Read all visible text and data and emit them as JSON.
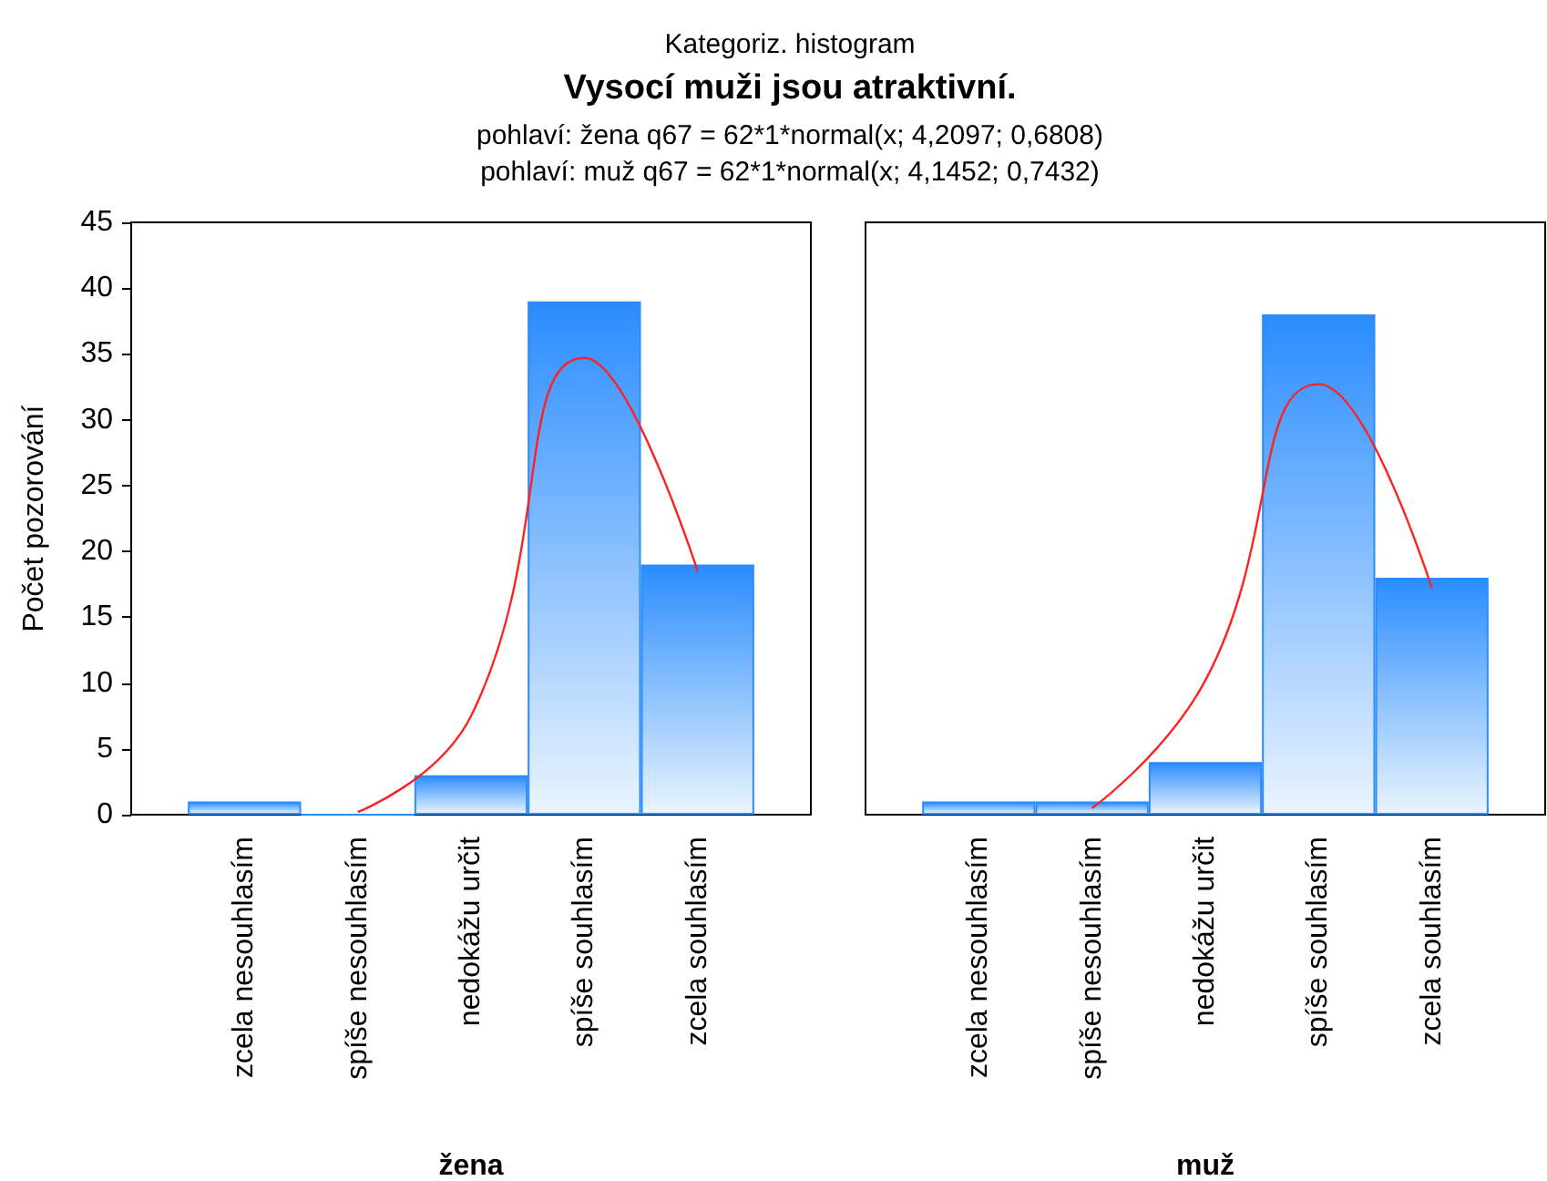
{
  "chart_data": [
    {
      "type": "bar",
      "title": "Vysocí muži jsou atraktivní.",
      "subtitle": "Kategoriz. histogram",
      "annotations": [
        "pohlaví: žena q67 = 62*1*normal(x; 4,2097; 0,6808)",
        "pohlaví: muž q67 = 62*1*normal(x; 4,1452; 0,7432)"
      ],
      "xlabel": "žena",
      "ylabel": "Počet pozorování",
      "categories": [
        "zcela nesouhlasím",
        "spíše nesouhlasím",
        "nedokážu určit",
        "spíše souhlasím",
        "zcela souhlasím"
      ],
      "series": [
        {
          "type": "bar",
          "color": "#2a8cff",
          "values": [
            1,
            0,
            3,
            39,
            19
          ]
        },
        {
          "type": "line",
          "color": "#ff2020",
          "values": [
            null,
            0.2,
            7.5,
            34.7,
            18.5
          ]
        }
      ],
      "ylim": [
        0,
        45
      ],
      "yticks": [
        0,
        5,
        10,
        15,
        20,
        25,
        30,
        35,
        40,
        45
      ],
      "grid": false
    },
    {
      "type": "bar",
      "xlabel": "muž",
      "categories": [
        "zcela nesouhlasím",
        "spíše nesouhlasím",
        "nedokážu určit",
        "spíše souhlasím",
        "zcela souhlasím"
      ],
      "series": [
        {
          "type": "bar",
          "color": "#2a8cff",
          "values": [
            1,
            1,
            4,
            38,
            18
          ]
        },
        {
          "type": "line",
          "color": "#ff2020",
          "values": [
            null,
            0.5,
            10.2,
            32.7,
            17.2
          ]
        }
      ],
      "ylim": [
        0,
        45
      ],
      "yticks": [
        0,
        5,
        10,
        15,
        20,
        25,
        30,
        35,
        40,
        45
      ],
      "grid": false,
      "tick_labels": "x"
    }
  ]
}
